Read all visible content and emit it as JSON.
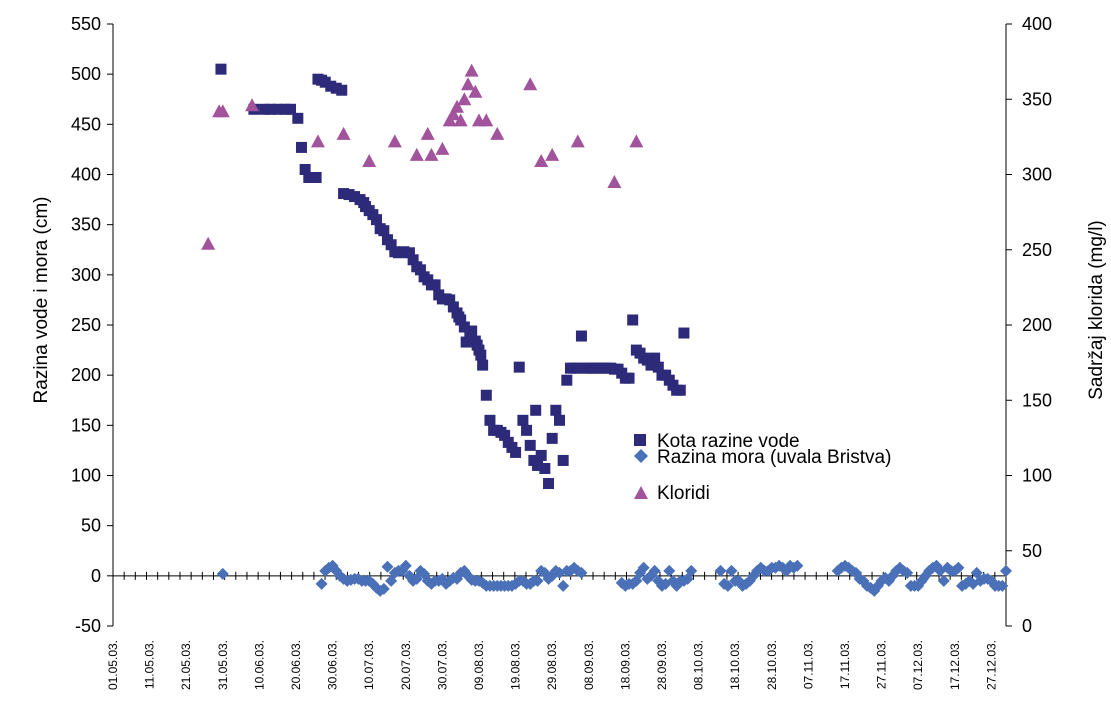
{
  "chart_data": {
    "type": "scatter",
    "grid": false,
    "legend_position": "right-center",
    "y_left": {
      "label": "Razina vode i mora (cm)",
      "range": [
        -50,
        550
      ],
      "ticks": [
        -50,
        0,
        50,
        100,
        150,
        200,
        250,
        300,
        350,
        400,
        450,
        500,
        550
      ]
    },
    "y_right": {
      "label": "Sadržaj klorida (mg/l)",
      "range": [
        0,
        400
      ],
      "ticks": [
        0,
        50,
        100,
        150,
        200,
        250,
        300,
        350,
        400
      ]
    },
    "x": {
      "label": "",
      "range_days": [
        0,
        244
      ],
      "tick_labels": [
        "01.05.03.",
        "11.05.03.",
        "21.05.03.",
        "31.05.03.",
        "10.06.03.",
        "20.06.03.",
        "30.06.03.",
        "10.07.03.",
        "20.07.03.",
        "30.07.03.",
        "09.08.03.",
        "19.08.03.",
        "29.08.03.",
        "08.09.03.",
        "18.09.03.",
        "28.09.03.",
        "08.10.03.",
        "18.10.03.",
        "28.10.03.",
        "07.11.03.",
        "17.11.03.",
        "27.11.03.",
        "07.12.03.",
        "17.12.03.",
        "27.12.03."
      ]
    },
    "series": [
      {
        "name": "Kota razine vode",
        "axis": "left",
        "marker": "square",
        "color": "#2e2a7a",
        "points": [
          [
            29.5,
            505
          ],
          [
            38.5,
            465
          ],
          [
            41.5,
            465
          ],
          [
            43,
            465
          ],
          [
            45,
            465
          ],
          [
            47,
            465
          ],
          [
            48.5,
            465
          ],
          [
            50.5,
            456
          ],
          [
            51.5,
            427
          ],
          [
            52.5,
            405
          ],
          [
            53.5,
            397
          ],
          [
            55.5,
            397
          ],
          [
            56,
            495
          ],
          [
            57,
            494
          ],
          [
            58,
            492
          ],
          [
            59.5,
            488
          ],
          [
            61,
            486
          ],
          [
            62.5,
            484
          ],
          [
            63,
            381
          ],
          [
            64.5,
            380
          ],
          [
            66,
            378
          ],
          [
            67.5,
            375
          ],
          [
            68.5,
            372
          ],
          [
            69,
            368
          ],
          [
            70,
            364
          ],
          [
            71,
            360
          ],
          [
            72,
            355
          ],
          [
            73,
            346
          ],
          [
            74,
            344
          ],
          [
            75,
            335
          ],
          [
            76,
            330
          ],
          [
            77,
            323
          ],
          [
            78,
            322
          ],
          [
            79.5,
            323
          ],
          [
            81,
            322
          ],
          [
            82,
            315
          ],
          [
            83,
            308
          ],
          [
            84,
            305
          ],
          [
            85,
            298
          ],
          [
            86,
            295
          ],
          [
            87,
            290
          ],
          [
            88,
            290
          ],
          [
            89,
            280
          ],
          [
            90,
            276
          ],
          [
            91,
            276
          ],
          [
            92,
            275
          ],
          [
            93,
            268
          ],
          [
            94,
            262
          ],
          [
            94.5,
            258
          ],
          [
            95,
            255
          ],
          [
            96,
            248
          ],
          [
            96.5,
            233
          ],
          [
            97.5,
            238
          ],
          [
            98,
            244
          ],
          [
            99,
            234
          ],
          [
            99.5,
            230
          ],
          [
            100,
            225
          ],
          [
            100.5,
            220
          ],
          [
            101,
            210
          ],
          [
            102,
            180
          ],
          [
            103,
            155
          ],
          [
            104,
            145
          ],
          [
            105,
            145
          ],
          [
            106,
            143
          ],
          [
            107,
            140
          ],
          [
            108,
            133
          ],
          [
            109,
            128
          ],
          [
            110,
            123
          ],
          [
            111,
            208
          ],
          [
            112,
            155
          ],
          [
            113,
            145
          ],
          [
            114,
            130
          ],
          [
            115,
            115
          ],
          [
            115.5,
            165
          ],
          [
            116,
            110
          ],
          [
            117,
            120
          ],
          [
            118,
            107
          ],
          [
            119,
            92
          ],
          [
            120,
            137
          ],
          [
            121,
            165
          ],
          [
            122,
            155
          ],
          [
            123,
            115
          ],
          [
            124,
            195
          ],
          [
            125,
            207
          ],
          [
            126,
            207
          ],
          [
            127,
            207
          ],
          [
            128,
            239
          ],
          [
            129,
            207
          ],
          [
            130,
            207
          ],
          [
            131,
            207
          ],
          [
            132,
            207
          ],
          [
            133,
            207
          ],
          [
            134,
            207
          ],
          [
            135,
            207
          ],
          [
            136,
            207
          ],
          [
            137,
            206
          ],
          [
            138,
            206
          ],
          [
            139,
            202
          ],
          [
            140,
            197
          ],
          [
            141,
            197
          ],
          [
            142,
            255
          ],
          [
            143,
            225
          ],
          [
            144,
            222
          ],
          [
            145,
            217
          ],
          [
            146,
            215
          ],
          [
            147,
            210
          ],
          [
            148,
            217
          ],
          [
            149,
            208
          ],
          [
            150,
            200
          ],
          [
            151,
            200
          ],
          [
            152,
            195
          ],
          [
            153,
            190
          ],
          [
            154,
            185
          ],
          [
            155,
            185
          ],
          [
            156,
            242
          ]
        ]
      },
      {
        "name": "Razina mora (uvala Bristva)",
        "axis": "left",
        "marker": "diamond",
        "color": "#4a70b8",
        "points": [
          [
            30,
            2
          ],
          [
            57,
            -8
          ],
          [
            58,
            5
          ],
          [
            59,
            8
          ],
          [
            60,
            10
          ],
          [
            61,
            5
          ],
          [
            62,
            0
          ],
          [
            63,
            -3
          ],
          [
            64,
            -5
          ],
          [
            65,
            -4
          ],
          [
            66,
            -3
          ],
          [
            67,
            -3
          ],
          [
            68,
            -5
          ],
          [
            69,
            -5
          ],
          [
            70,
            -5
          ],
          [
            71,
            -8
          ],
          [
            72,
            -12
          ],
          [
            73,
            -15
          ],
          [
            74,
            -13
          ],
          [
            75,
            9
          ],
          [
            76,
            -5
          ],
          [
            77,
            3
          ],
          [
            78,
            5
          ],
          [
            79,
            5
          ],
          [
            80,
            10
          ],
          [
            81,
            0
          ],
          [
            82,
            -5
          ],
          [
            83,
            -3
          ],
          [
            84,
            5
          ],
          [
            85,
            2
          ],
          [
            86,
            -5
          ],
          [
            87,
            -8
          ],
          [
            88,
            -5
          ],
          [
            89,
            -5
          ],
          [
            90,
            -3
          ],
          [
            91,
            -8
          ],
          [
            92,
            -5
          ],
          [
            93,
            -2
          ],
          [
            94,
            -3
          ],
          [
            95,
            3
          ],
          [
            96,
            5
          ],
          [
            97,
            0
          ],
          [
            98,
            -4
          ],
          [
            99,
            -5
          ],
          [
            100,
            -5
          ],
          [
            101,
            -7
          ],
          [
            102,
            -10
          ],
          [
            103,
            -10
          ],
          [
            104,
            -10
          ],
          [
            105,
            -10
          ],
          [
            106,
            -10
          ],
          [
            107,
            -10
          ],
          [
            108,
            -10
          ],
          [
            109,
            -10
          ],
          [
            110,
            -8
          ],
          [
            111,
            -5
          ],
          [
            112,
            -5
          ],
          [
            113,
            -8
          ],
          [
            114,
            -8
          ],
          [
            115,
            -5
          ],
          [
            116,
            -5
          ],
          [
            117,
            5
          ],
          [
            118,
            3
          ],
          [
            119,
            -3
          ],
          [
            120,
            0
          ],
          [
            121,
            5
          ],
          [
            122,
            3
          ],
          [
            123,
            -10
          ],
          [
            124,
            5
          ],
          [
            125,
            5
          ],
          [
            126,
            8
          ],
          [
            127,
            5
          ],
          [
            128,
            3
          ],
          [
            139,
            -7
          ],
          [
            140,
            -10
          ],
          [
            141,
            -8
          ],
          [
            142,
            -8
          ],
          [
            143,
            -5
          ],
          [
            144,
            3
          ],
          [
            145,
            8
          ],
          [
            146,
            -3
          ],
          [
            147,
            0
          ],
          [
            148,
            5
          ],
          [
            149,
            -5
          ],
          [
            150,
            -10
          ],
          [
            151,
            -8
          ],
          [
            152,
            5
          ],
          [
            153,
            -5
          ],
          [
            154,
            -10
          ],
          [
            155,
            -5
          ],
          [
            156,
            -5
          ],
          [
            157,
            -3
          ],
          [
            158,
            5
          ],
          [
            166,
            5
          ],
          [
            167,
            -8
          ],
          [
            168,
            -10
          ],
          [
            169,
            5
          ],
          [
            170,
            -5
          ],
          [
            171,
            -5
          ],
          [
            172,
            -10
          ],
          [
            173,
            -8
          ],
          [
            174,
            -5
          ],
          [
            175,
            0
          ],
          [
            176,
            5
          ],
          [
            177,
            8
          ],
          [
            178,
            5
          ],
          [
            179,
            5
          ],
          [
            180,
            8
          ],
          [
            181,
            8
          ],
          [
            182,
            10
          ],
          [
            183,
            8
          ],
          [
            184,
            5
          ],
          [
            185,
            10
          ],
          [
            186,
            8
          ],
          [
            187,
            10
          ],
          [
            198,
            5
          ],
          [
            199,
            8
          ],
          [
            200,
            10
          ],
          [
            201,
            8
          ],
          [
            202,
            5
          ],
          [
            203,
            3
          ],
          [
            204,
            -3
          ],
          [
            205,
            -5
          ],
          [
            206,
            -10
          ],
          [
            207,
            -12
          ],
          [
            208,
            -15
          ],
          [
            209,
            -10
          ],
          [
            210,
            -5
          ],
          [
            211,
            -2
          ],
          [
            212,
            -5
          ],
          [
            213,
            0
          ],
          [
            214,
            5
          ],
          [
            215,
            8
          ],
          [
            216,
            5
          ],
          [
            217,
            3
          ],
          [
            218,
            -10
          ],
          [
            219,
            -10
          ],
          [
            220,
            -10
          ],
          [
            221,
            -5
          ],
          [
            222,
            0
          ],
          [
            223,
            5
          ],
          [
            224,
            8
          ],
          [
            225,
            10
          ],
          [
            226,
            5
          ],
          [
            227,
            -5
          ],
          [
            228,
            8
          ],
          [
            229,
            5
          ],
          [
            230,
            5
          ],
          [
            231,
            8
          ],
          [
            232,
            -10
          ],
          [
            233,
            -8
          ],
          [
            234,
            -5
          ],
          [
            235,
            -8
          ],
          [
            236,
            3
          ],
          [
            237,
            -5
          ],
          [
            238,
            -3
          ],
          [
            239,
            -3
          ],
          [
            240,
            -5
          ],
          [
            241,
            -10
          ],
          [
            242,
            -10
          ],
          [
            243,
            -10
          ],
          [
            244,
            5
          ]
        ]
      },
      {
        "name": "Kloridi",
        "axis": "right",
        "marker": "triangle",
        "color": "#a1549c",
        "points": [
          [
            26,
            254
          ],
          [
            29,
            342
          ],
          [
            30,
            342
          ],
          [
            38,
            346
          ],
          [
            56,
            322
          ],
          [
            63,
            327
          ],
          [
            70,
            309
          ],
          [
            77,
            322
          ],
          [
            83,
            313
          ],
          [
            86,
            327
          ],
          [
            87,
            313
          ],
          [
            90,
            317
          ],
          [
            92,
            336
          ],
          [
            93,
            340
          ],
          [
            94,
            345
          ],
          [
            95,
            336
          ],
          [
            96,
            350
          ],
          [
            97,
            360
          ],
          [
            98,
            369
          ],
          [
            99,
            355
          ],
          [
            100,
            336
          ],
          [
            102,
            336
          ],
          [
            105,
            327
          ],
          [
            114,
            360
          ],
          [
            117,
            309
          ],
          [
            120,
            313
          ],
          [
            127,
            322
          ],
          [
            137,
            295
          ],
          [
            143,
            322
          ]
        ]
      }
    ]
  }
}
